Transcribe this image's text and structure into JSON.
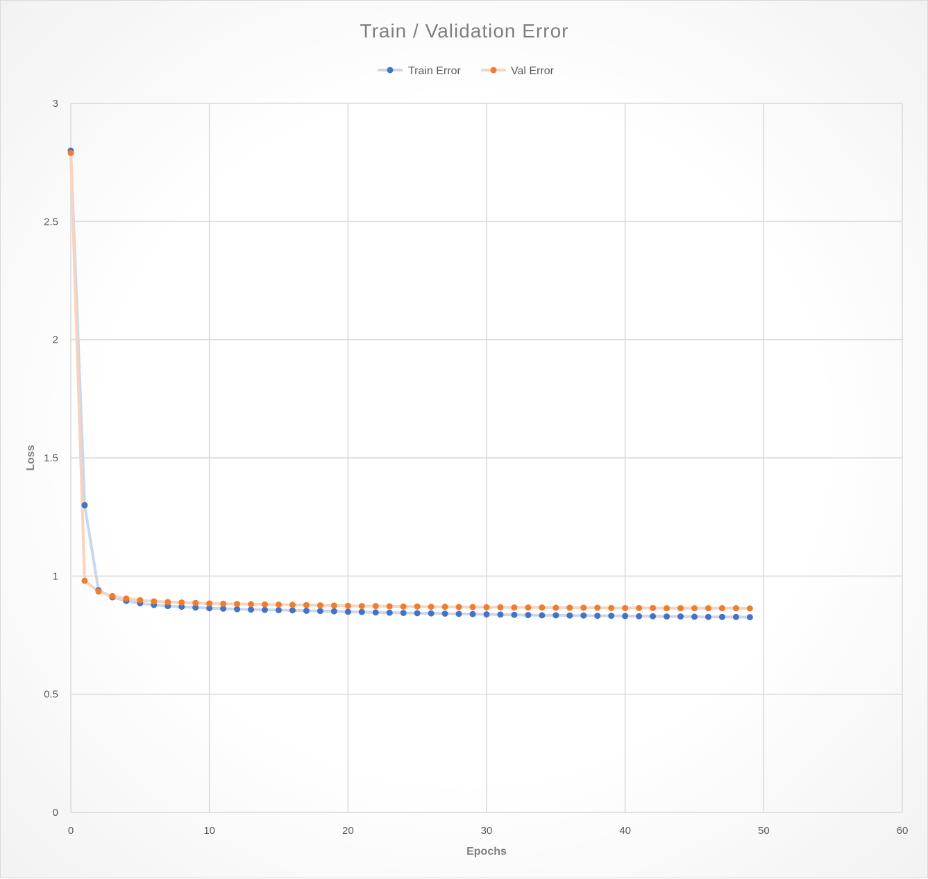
{
  "chart_data": {
    "type": "line",
    "title": "Train / Validation Error",
    "xlabel": "Epochs",
    "ylabel": "Loss",
    "xlim": [
      0,
      60
    ],
    "ylim": [
      0,
      3
    ],
    "x_ticks": [
      0,
      10,
      20,
      30,
      40,
      50,
      60
    ],
    "y_ticks": [
      0,
      0.5,
      1,
      1.5,
      2,
      2.5,
      3
    ],
    "grid": true,
    "legend_position": "top",
    "x": [
      0,
      1,
      2,
      3,
      4,
      5,
      6,
      7,
      8,
      9,
      10,
      11,
      12,
      13,
      14,
      15,
      16,
      17,
      18,
      19,
      20,
      21,
      22,
      23,
      24,
      25,
      26,
      27,
      28,
      29,
      30,
      31,
      32,
      33,
      34,
      35,
      36,
      37,
      38,
      39,
      40,
      41,
      42,
      43,
      44,
      45,
      46,
      47,
      48,
      49
    ],
    "series": [
      {
        "name": "Train Error",
        "color": "#4472c4",
        "line_color": "#c9d6ee",
        "values": [
          2.8,
          1.3,
          0.94,
          0.91,
          0.895,
          0.885,
          0.878,
          0.873,
          0.87,
          0.867,
          0.864,
          0.862,
          0.86,
          0.858,
          0.857,
          0.856,
          0.855,
          0.853,
          0.852,
          0.851,
          0.849,
          0.848,
          0.846,
          0.845,
          0.844,
          0.843,
          0.842,
          0.841,
          0.84,
          0.839,
          0.838,
          0.837,
          0.836,
          0.835,
          0.834,
          0.834,
          0.833,
          0.833,
          0.832,
          0.832,
          0.831,
          0.83,
          0.83,
          0.829,
          0.829,
          0.828,
          0.827,
          0.827,
          0.827,
          0.826
        ]
      },
      {
        "name": "Val Error",
        "color": "#ed7d31",
        "line_color": "#f8d3bd",
        "values": [
          2.79,
          0.98,
          0.935,
          0.915,
          0.905,
          0.898,
          0.893,
          0.89,
          0.888,
          0.886,
          0.884,
          0.883,
          0.882,
          0.881,
          0.88,
          0.879,
          0.878,
          0.877,
          0.876,
          0.875,
          0.874,
          0.873,
          0.873,
          0.872,
          0.871,
          0.871,
          0.87,
          0.87,
          0.869,
          0.869,
          0.868,
          0.868,
          0.867,
          0.867,
          0.867,
          0.866,
          0.866,
          0.866,
          0.866,
          0.865,
          0.865,
          0.865,
          0.865,
          0.864,
          0.864,
          0.864,
          0.864,
          0.864,
          0.864,
          0.863
        ]
      }
    ]
  }
}
